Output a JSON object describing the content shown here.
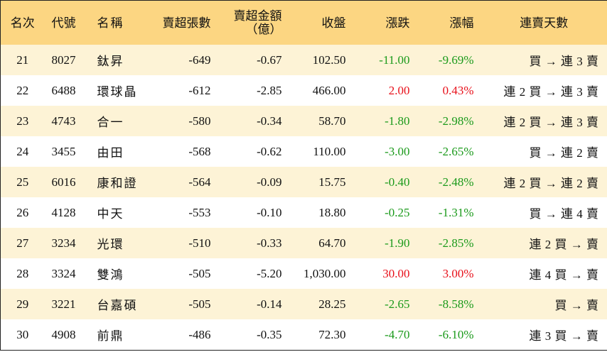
{
  "table": {
    "header": [
      "名次",
      "代號",
      "名稱",
      "賣超張數",
      "賣超金額\n（億）",
      "收盤",
      "漲跌",
      "漲幅",
      "連賣天數"
    ],
    "rows": [
      [
        "21",
        "8027",
        "鈦昇",
        "-649",
        "-0.67",
        "102.50",
        "-11.00",
        "-9.69%",
        "買 → 連 3 賣"
      ],
      [
        "22",
        "6488",
        "環球晶",
        "-612",
        "-2.85",
        "466.00",
        "2.00",
        "0.43%",
        "連 2 買 → 連 3 賣"
      ],
      [
        "23",
        "4743",
        "合一",
        "-580",
        "-0.34",
        "58.70",
        "-1.80",
        "-2.98%",
        "連 2 買 → 連 3 賣"
      ],
      [
        "24",
        "3455",
        "由田",
        "-568",
        "-0.62",
        "110.00",
        "-3.00",
        "-2.65%",
        "買 → 連 2 賣"
      ],
      [
        "25",
        "6016",
        "康和證",
        "-564",
        "-0.09",
        "15.75",
        "-0.40",
        "-2.48%",
        "連 2 買 → 連 2 賣"
      ],
      [
        "26",
        "4128",
        "中天",
        "-553",
        "-0.10",
        "18.80",
        "-0.25",
        "-1.31%",
        "買 → 連 4 賣"
      ],
      [
        "27",
        "3234",
        "光環",
        "-510",
        "-0.33",
        "64.70",
        "-1.90",
        "-2.85%",
        "連 2 買 → 賣"
      ],
      [
        "28",
        "3324",
        "雙鴻",
        "-505",
        "-5.20",
        "1,030.00",
        "30.00",
        "3.00%",
        "連 4 買 → 賣"
      ],
      [
        "29",
        "3221",
        "台嘉碩",
        "-505",
        "-0.14",
        "28.25",
        "-2.65",
        "-8.58%",
        "買 → 賣"
      ],
      [
        "30",
        "4908",
        "前鼎",
        "-486",
        "-0.35",
        "72.30",
        "-4.70",
        "-6.10%",
        "連 3 買 → 賣"
      ]
    ]
  }
}
